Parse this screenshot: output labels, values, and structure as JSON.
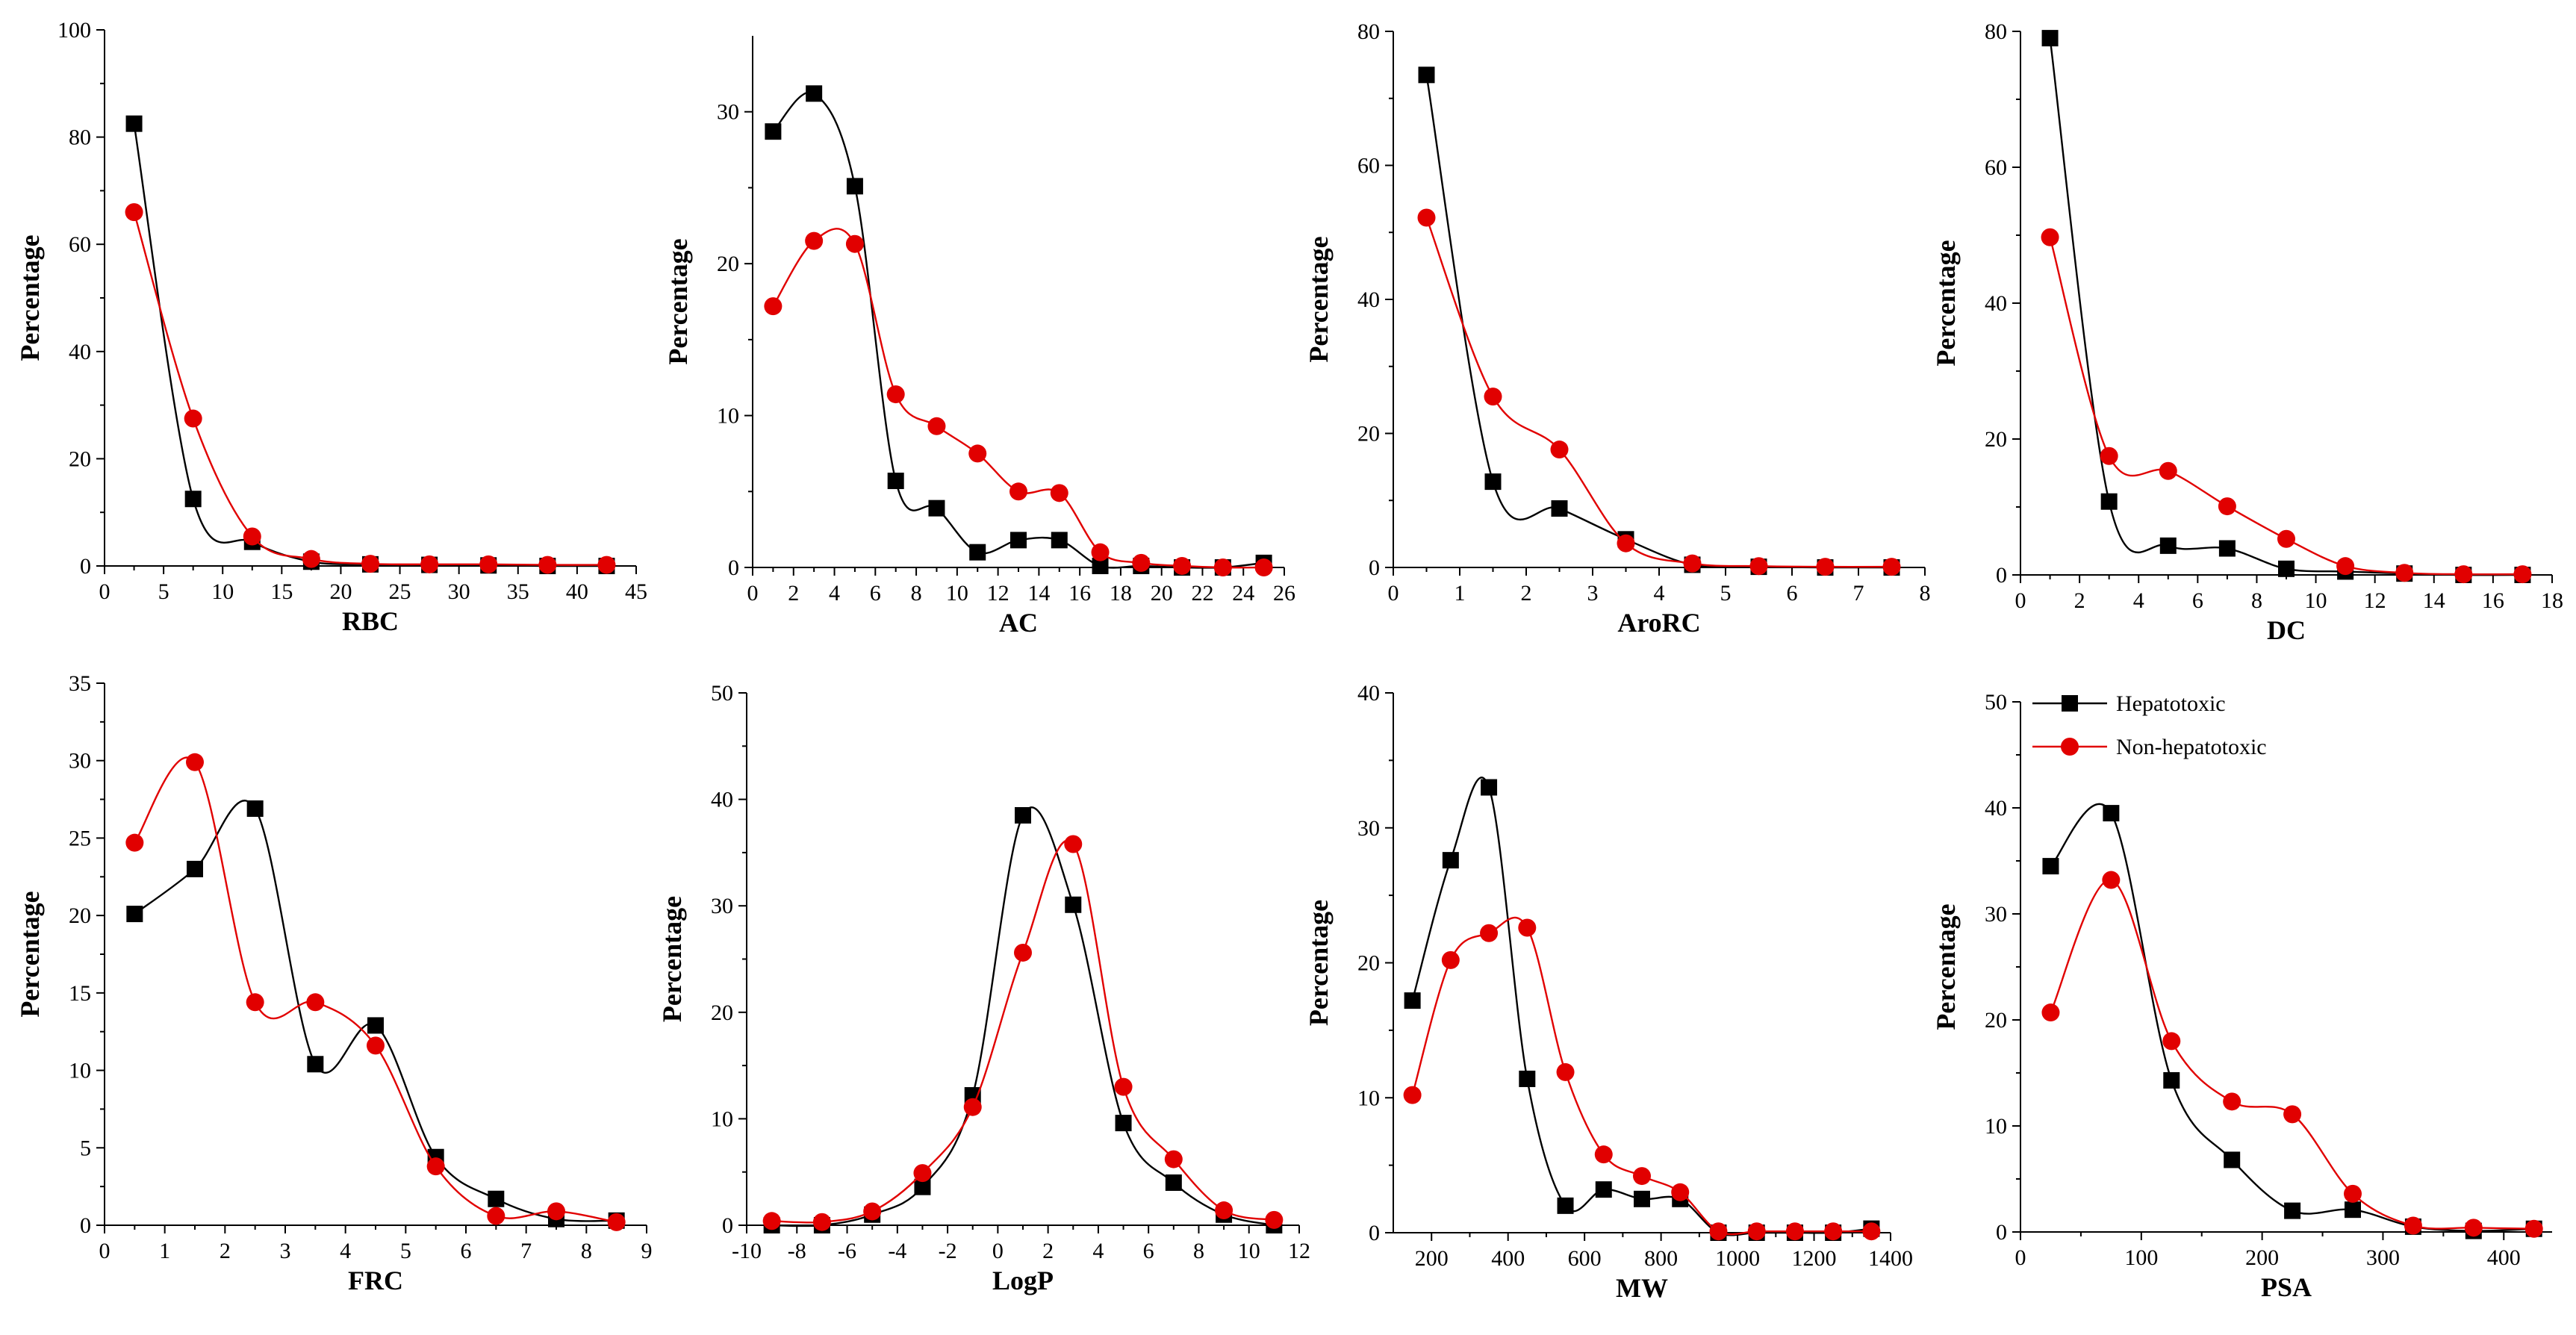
{
  "colors": {
    "hepatotoxic": "#000000",
    "non_hepatotoxic": "#e10000",
    "axis": "#000000",
    "background": "#ffffff"
  },
  "legend": {
    "items": [
      {
        "label": "Hepatotoxic",
        "color": "#000000",
        "marker": "square"
      },
      {
        "label": "Non-hepatotoxic",
        "color": "#e10000",
        "marker": "circle"
      }
    ]
  },
  "chart_data": [
    {
      "id": "rbc",
      "type": "line",
      "xlabel": "RBC",
      "ylabel": "Percentage",
      "xlim": [
        0,
        45
      ],
      "ylim": [
        0,
        100
      ],
      "xticks": [
        0,
        5,
        10,
        15,
        20,
        25,
        30,
        35,
        40,
        45
      ],
      "yticks": [
        0,
        20,
        40,
        60,
        80,
        100
      ],
      "series": [
        {
          "name": "Hepatotoxic",
          "marker": "square",
          "x": [
            2.5,
            7.5,
            12.5,
            17.5,
            22.5,
            27.5,
            32.5,
            37.5,
            42.5
          ],
          "y": [
            82.5,
            12.5,
            4.5,
            0.8,
            0.3,
            0.2,
            0.1,
            0,
            0
          ]
        },
        {
          "name": "Non-hepatotoxic",
          "marker": "circle",
          "x": [
            2.5,
            7.5,
            12.5,
            17.5,
            22.5,
            27.5,
            32.5,
            37.5,
            42.5
          ],
          "y": [
            66,
            27.5,
            5.5,
            1.3,
            0.4,
            0.3,
            0.3,
            0.2,
            0.2
          ]
        }
      ]
    },
    {
      "id": "ac",
      "type": "line",
      "xlabel": "AC",
      "ylabel": "Percentage",
      "xlim": [
        0,
        26
      ],
      "ylim": [
        0,
        35
      ],
      "xticks": [
        0,
        2,
        4,
        6,
        8,
        10,
        12,
        14,
        16,
        18,
        20,
        22,
        24,
        26
      ],
      "yticks": [
        0,
        10,
        20,
        30
      ],
      "series": [
        {
          "name": "Hepatotoxic",
          "marker": "square",
          "x": [
            1,
            3,
            5,
            7,
            9,
            11,
            13,
            15,
            17,
            19,
            21,
            23,
            25
          ],
          "y": [
            28.7,
            31.2,
            25.1,
            5.7,
            3.9,
            1.0,
            1.8,
            1.8,
            0.1,
            0.1,
            0,
            0,
            0.3
          ]
        },
        {
          "name": "Non-hepatotoxic",
          "marker": "circle",
          "x": [
            1,
            3,
            5,
            7,
            9,
            11,
            13,
            15,
            17,
            19,
            21,
            23,
            25
          ],
          "y": [
            17.2,
            21.5,
            21.3,
            11.4,
            9.3,
            7.5,
            5.0,
            4.9,
            1.0,
            0.3,
            0.1,
            0,
            0
          ]
        }
      ]
    },
    {
      "id": "arorc",
      "type": "line",
      "xlabel": "AroRC",
      "ylabel": "Percentage",
      "xlim": [
        0,
        8
      ],
      "ylim": [
        0,
        80
      ],
      "xticks": [
        0,
        1,
        2,
        3,
        4,
        5,
        6,
        7,
        8
      ],
      "yticks": [
        0,
        20,
        40,
        60,
        80
      ],
      "series": [
        {
          "name": "Hepatotoxic",
          "marker": "square",
          "x": [
            0.5,
            1.5,
            2.5,
            3.5,
            4.5,
            5.5,
            6.5,
            7.5
          ],
          "y": [
            73.5,
            12.8,
            8.8,
            4.2,
            0.4,
            0.1,
            0,
            0
          ]
        },
        {
          "name": "Non-hepatotoxic",
          "marker": "circle",
          "x": [
            0.5,
            1.5,
            2.5,
            3.5,
            4.5,
            5.5,
            6.5,
            7.5
          ],
          "y": [
            52.2,
            25.5,
            17.6,
            3.6,
            0.6,
            0.2,
            0.1,
            0.1
          ]
        }
      ]
    },
    {
      "id": "dc",
      "type": "line",
      "xlabel": "DC",
      "ylabel": "Percentage",
      "xlim": [
        0,
        18
      ],
      "ylim": [
        0,
        80
      ],
      "xticks": [
        0,
        2,
        4,
        6,
        8,
        10,
        12,
        14,
        16,
        18
      ],
      "yticks": [
        0,
        20,
        40,
        60,
        80
      ],
      "series": [
        {
          "name": "Hepatotoxic",
          "marker": "square",
          "x": [
            1,
            3,
            5,
            7,
            9,
            11,
            13,
            15,
            17
          ],
          "y": [
            79,
            10.8,
            4.3,
            3.9,
            0.9,
            0.5,
            0.2,
            0,
            0
          ]
        },
        {
          "name": "Non-hepatotoxic",
          "marker": "circle",
          "x": [
            1,
            3,
            5,
            7,
            9,
            11,
            13,
            15,
            17
          ],
          "y": [
            49.7,
            17.5,
            15.3,
            10.1,
            5.3,
            1.3,
            0.3,
            0.1,
            0.1
          ]
        }
      ]
    },
    {
      "id": "frc",
      "type": "line",
      "xlabel": "FRC",
      "ylabel": "Percentage",
      "xlim": [
        0,
        9
      ],
      "ylim": [
        0,
        35
      ],
      "xticks": [
        0,
        1,
        2,
        3,
        4,
        5,
        6,
        7,
        8,
        9
      ],
      "yticks": [
        0,
        5,
        10,
        15,
        20,
        25,
        30,
        35
      ],
      "series": [
        {
          "name": "Hepatotoxic",
          "marker": "square",
          "x": [
            0.5,
            1.5,
            2.5,
            3.5,
            4.5,
            5.5,
            6.5,
            7.5,
            8.5
          ],
          "y": [
            20.1,
            23.0,
            26.9,
            10.4,
            12.9,
            4.4,
            1.7,
            0.4,
            0.3
          ]
        },
        {
          "name": "Non-hepatotoxic",
          "marker": "circle",
          "x": [
            0.5,
            1.5,
            2.5,
            3.5,
            4.5,
            5.5,
            6.5,
            7.5,
            8.5
          ],
          "y": [
            24.7,
            29.9,
            14.4,
            14.4,
            11.6,
            3.8,
            0.6,
            0.9,
            0.2
          ]
        }
      ]
    },
    {
      "id": "logp",
      "type": "line",
      "xlabel": "LogP",
      "ylabel": "Percentage",
      "xlim": [
        -10,
        12
      ],
      "ylim": [
        0,
        50
      ],
      "xticks": [
        -10,
        -8,
        -6,
        -4,
        -2,
        0,
        2,
        4,
        6,
        8,
        10,
        12
      ],
      "yticks": [
        0,
        10,
        20,
        30,
        40,
        50
      ],
      "series": [
        {
          "name": "Hepatotoxic",
          "marker": "square",
          "x": [
            -9,
            -7,
            -5,
            -3,
            -1,
            1,
            3,
            5,
            7,
            9,
            11
          ],
          "y": [
            0,
            0,
            1.0,
            3.6,
            12.2,
            38.5,
            30.1,
            9.6,
            4.0,
            1.0,
            0
          ]
        },
        {
          "name": "Non-hepatotoxic",
          "marker": "circle",
          "x": [
            -9,
            -7,
            -5,
            -3,
            -1,
            1,
            3,
            5,
            7,
            9,
            11
          ],
          "y": [
            0.4,
            0.3,
            1.3,
            4.9,
            11.1,
            25.6,
            35.8,
            13.0,
            6.2,
            1.4,
            0.5
          ]
        }
      ]
    },
    {
      "id": "mw",
      "type": "line",
      "xlabel": "MW",
      "ylabel": "Percentage",
      "xlim": [
        100,
        1400
      ],
      "ylim": [
        0,
        40
      ],
      "xticks": [
        200,
        400,
        600,
        800,
        1000,
        1200,
        1400
      ],
      "yticks": [
        0,
        10,
        20,
        30,
        40
      ],
      "series": [
        {
          "name": "Hepatotoxic",
          "marker": "square",
          "x": [
            150,
            250,
            350,
            450,
            550,
            650,
            750,
            850,
            950,
            1050,
            1150,
            1250,
            1350
          ],
          "y": [
            17.2,
            27.6,
            33.0,
            11.4,
            2.0,
            3.2,
            2.5,
            2.5,
            0,
            0,
            0,
            0,
            0.3
          ]
        },
        {
          "name": "Non-hepatotoxic",
          "marker": "circle",
          "x": [
            150,
            250,
            350,
            450,
            550,
            650,
            750,
            850,
            950,
            1050,
            1150,
            1250,
            1350
          ],
          "y": [
            10.2,
            20.2,
            22.2,
            22.6,
            11.9,
            5.8,
            4.2,
            3.0,
            0.1,
            0.1,
            0.1,
            0.1,
            0.1
          ]
        }
      ]
    },
    {
      "id": "psa",
      "type": "line",
      "xlabel": "PSA",
      "ylabel": "Percentage",
      "xlim": [
        0,
        440
      ],
      "ylim": [
        0,
        50
      ],
      "xticks": [
        0,
        100,
        200,
        300,
        400
      ],
      "yticks": [
        0,
        10,
        20,
        30,
        40,
        50
      ],
      "legend_position": "top-left",
      "series": [
        {
          "name": "Hepatotoxic",
          "marker": "square",
          "x": [
            25,
            75,
            125,
            175,
            225,
            275,
            325,
            375,
            425
          ],
          "y": [
            34.5,
            39.5,
            14.3,
            6.8,
            2.0,
            2.1,
            0.5,
            0.1,
            0.3
          ]
        },
        {
          "name": "Non-hepatotoxic",
          "marker": "circle",
          "x": [
            25,
            75,
            125,
            175,
            225,
            275,
            325,
            375,
            425
          ],
          "y": [
            20.7,
            33.2,
            18.0,
            12.3,
            11.1,
            3.6,
            0.6,
            0.4,
            0.3
          ]
        }
      ]
    }
  ]
}
